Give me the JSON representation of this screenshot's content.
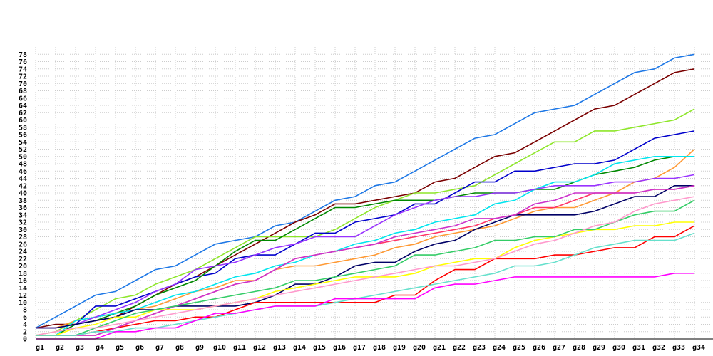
{
  "chart_data": {
    "type": "line",
    "title": "",
    "xlabel": "",
    "ylabel": "",
    "ylim": [
      0,
      80
    ],
    "y_ticks": [
      0,
      2,
      4,
      6,
      8,
      10,
      12,
      14,
      16,
      18,
      20,
      22,
      24,
      26,
      28,
      30,
      32,
      34,
      36,
      38,
      40,
      42,
      44,
      46,
      48,
      50,
      52,
      54,
      56,
      58,
      60,
      62,
      64,
      66,
      68,
      70,
      72,
      74,
      76,
      78
    ],
    "grid": true,
    "legend": "none",
    "categories": [
      "g1",
      "g2",
      "g3",
      "g4",
      "g5",
      "g6",
      "g7",
      "g8",
      "g9",
      "g10",
      "g11",
      "g12",
      "g13",
      "g14",
      "g15",
      "g16",
      "g17",
      "g18",
      "g19",
      "g20",
      "g21",
      "g22",
      "g23",
      "g24",
      "g25",
      "g26",
      "g27",
      "g28",
      "g29",
      "g30",
      "g31",
      "g32",
      "g33",
      "g34"
    ],
    "series": [
      {
        "color": "#1e78e6",
        "values": [
          3,
          6,
          9,
          12,
          13,
          16,
          19,
          20,
          23,
          26,
          27,
          28,
          31,
          32,
          35,
          38,
          39,
          42,
          43,
          46,
          49,
          52,
          55,
          56,
          59,
          62,
          63,
          64,
          67,
          70,
          73,
          74,
          77,
          78
        ]
      },
      {
        "color": "#7a0000",
        "values": [
          3,
          4,
          4,
          5,
          6,
          9,
          12,
          15,
          17,
          20,
          23,
          26,
          29,
          32,
          34,
          37,
          37,
          38,
          39,
          40,
          43,
          44,
          47,
          50,
          51,
          54,
          57,
          60,
          63,
          64,
          67,
          70,
          73,
          74
        ]
      },
      {
        "color": "#8ee62a",
        "values": [
          1,
          2,
          5,
          8,
          11,
          12,
          15,
          17,
          19,
          22,
          25,
          28,
          28,
          28,
          28,
          30,
          33,
          36,
          38,
          40,
          40,
          41,
          42,
          45,
          48,
          51,
          54,
          54,
          57,
          57,
          58,
          59,
          60,
          63
        ]
      },
      {
        "color": "#0000cc",
        "values": [
          1,
          1,
          4,
          9,
          9,
          11,
          13,
          15,
          17,
          18,
          22,
          23,
          23,
          26,
          29,
          29,
          32,
          33,
          34,
          37,
          37,
          40,
          43,
          43,
          46,
          46,
          47,
          48,
          48,
          49,
          52,
          55,
          56,
          57
        ]
      },
      {
        "color": "#ff9933",
        "values": [
          3,
          3,
          5,
          6,
          7,
          8,
          9,
          11,
          13,
          14,
          16,
          16,
          19,
          20,
          20,
          21,
          22,
          23,
          25,
          26,
          28,
          29,
          30,
          31,
          33,
          35,
          36,
          36,
          38,
          40,
          43,
          44,
          47,
          52
        ]
      },
      {
        "color": "#008800",
        "values": [
          1,
          1,
          4,
          5,
          7,
          9,
          12,
          14,
          16,
          20,
          24,
          27,
          27,
          30,
          33,
          36,
          36,
          37,
          38,
          38,
          38,
          39,
          40,
          40,
          40,
          41,
          41,
          43,
          45,
          46,
          47,
          49,
          50,
          50
        ]
      },
      {
        "color": "#00e5ee",
        "values": [
          1,
          1,
          5,
          6,
          7,
          8,
          10,
          12,
          13,
          15,
          17,
          18,
          20,
          21,
          23,
          24,
          26,
          27,
          29,
          30,
          32,
          33,
          34,
          37,
          38,
          41,
          43,
          43,
          45,
          48,
          49,
          50,
          50,
          50
        ]
      },
      {
        "color": "#9933ff",
        "values": [
          3,
          3,
          4,
          6,
          8,
          10,
          13,
          15,
          19,
          20,
          21,
          23,
          25,
          26,
          28,
          28,
          28,
          31,
          34,
          36,
          38,
          39,
          39,
          40,
          40,
          41,
          42,
          42,
          42,
          43,
          43,
          44,
          44,
          45
        ]
      },
      {
        "color": "#000066",
        "values": [
          3,
          3,
          4,
          5,
          6,
          8,
          8,
          9,
          9,
          9,
          9,
          10,
          12,
          15,
          15,
          17,
          20,
          21,
          21,
          24,
          26,
          27,
          30,
          32,
          34,
          34,
          34,
          34,
          35,
          37,
          39,
          39,
          42,
          42
        ]
      },
      {
        "color": "#ff0000",
        "values": [
          1,
          1,
          1,
          2,
          3,
          4,
          5,
          5,
          6,
          6,
          8,
          10,
          10,
          10,
          10,
          10,
          10,
          10,
          12,
          12,
          16,
          19,
          19,
          22,
          22,
          22,
          23,
          23,
          24,
          25,
          25,
          28,
          28,
          31
        ]
      },
      {
        "color": "#ff3366",
        "values": [
          1,
          1,
          1,
          1,
          3,
          5,
          7,
          9,
          11,
          13,
          15,
          16,
          19,
          22,
          23,
          24,
          25,
          26,
          27,
          28,
          29,
          30,
          31,
          33,
          34,
          36,
          36,
          38,
          40,
          40,
          40,
          41,
          41,
          42
        ]
      },
      {
        "color": "#cc33cc",
        "values": [
          1,
          1,
          1,
          1,
          3,
          5,
          7,
          9,
          11,
          13,
          15,
          16,
          19,
          22,
          23,
          24,
          25,
          26,
          28,
          29,
          30,
          31,
          33,
          33,
          34,
          37,
          38,
          40,
          40,
          40,
          40,
          41,
          41,
          42
        ]
      },
      {
        "color": "#ffff00",
        "values": [
          1,
          1,
          3,
          4,
          6,
          6,
          8,
          8,
          8,
          9,
          10,
          11,
          13,
          14,
          15,
          16,
          17,
          17,
          17,
          18,
          20,
          21,
          22,
          22,
          25,
          27,
          28,
          29,
          30,
          30,
          31,
          31,
          32,
          32
        ]
      },
      {
        "color": "#33cc66",
        "values": [
          1,
          1,
          1,
          3,
          5,
          7,
          8,
          9,
          10,
          11,
          12,
          13,
          14,
          16,
          16,
          17,
          18,
          19,
          20,
          23,
          23,
          24,
          25,
          27,
          27,
          28,
          28,
          30,
          30,
          32,
          34,
          35,
          35,
          38
        ]
      },
      {
        "color": "#ff99cc",
        "values": [
          1,
          2,
          3,
          3,
          4,
          5,
          6,
          7,
          8,
          9,
          10,
          11,
          12,
          13,
          14,
          15,
          16,
          17,
          18,
          19,
          20,
          20,
          21,
          22,
          24,
          26,
          27,
          29,
          31,
          32,
          35,
          37,
          38,
          39
        ]
      },
      {
        "color": "#66e0cc",
        "values": [
          1,
          1,
          1,
          2,
          2,
          3,
          3,
          4,
          5,
          6,
          7,
          8,
          9,
          9,
          9,
          10,
          11,
          12,
          13,
          14,
          15,
          16,
          17,
          18,
          20,
          20,
          21,
          23,
          25,
          26,
          27,
          27,
          27,
          29
        ]
      },
      {
        "color": "#ff00ff",
        "values": [
          0,
          0,
          0,
          0,
          2,
          2,
          3,
          3,
          5,
          7,
          7,
          8,
          9,
          9,
          9,
          11,
          11,
          11,
          11,
          11,
          14,
          15,
          15,
          16,
          17,
          17,
          17,
          17,
          17,
          17,
          17,
          17,
          18,
          18
        ]
      }
    ]
  }
}
